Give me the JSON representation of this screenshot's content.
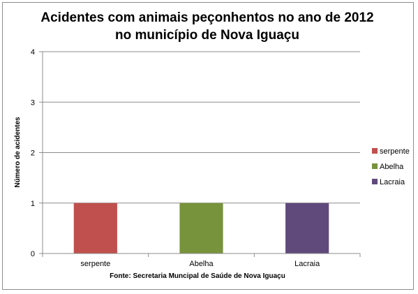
{
  "chart_data": {
    "type": "bar",
    "title_lines": [
      "Acidentes com animais peçonhentos no ano de 2012",
      "no município de Nova Iguaçu"
    ],
    "ylabel": "Número de acidentes",
    "xlabel": "",
    "source": "Fonte: Secretaria Muncipal  de Saúde de Nova Iguaçu",
    "categories": [
      "serpente",
      "Abelha",
      "Lacraia"
    ],
    "values": [
      1,
      1,
      1
    ],
    "colors": [
      "#c0504d",
      "#77933c",
      "#604a7b"
    ],
    "ylim": [
      0,
      4
    ],
    "yticks": [
      0,
      1,
      2,
      3,
      4
    ],
    "grid": true,
    "legend": {
      "placement": "right",
      "entries": [
        {
          "label": "serpente",
          "color": "#c0504d"
        },
        {
          "label": "Abelha",
          "color": "#77933c"
        },
        {
          "label": "Lacraia",
          "color": "#604a7b"
        }
      ]
    }
  }
}
